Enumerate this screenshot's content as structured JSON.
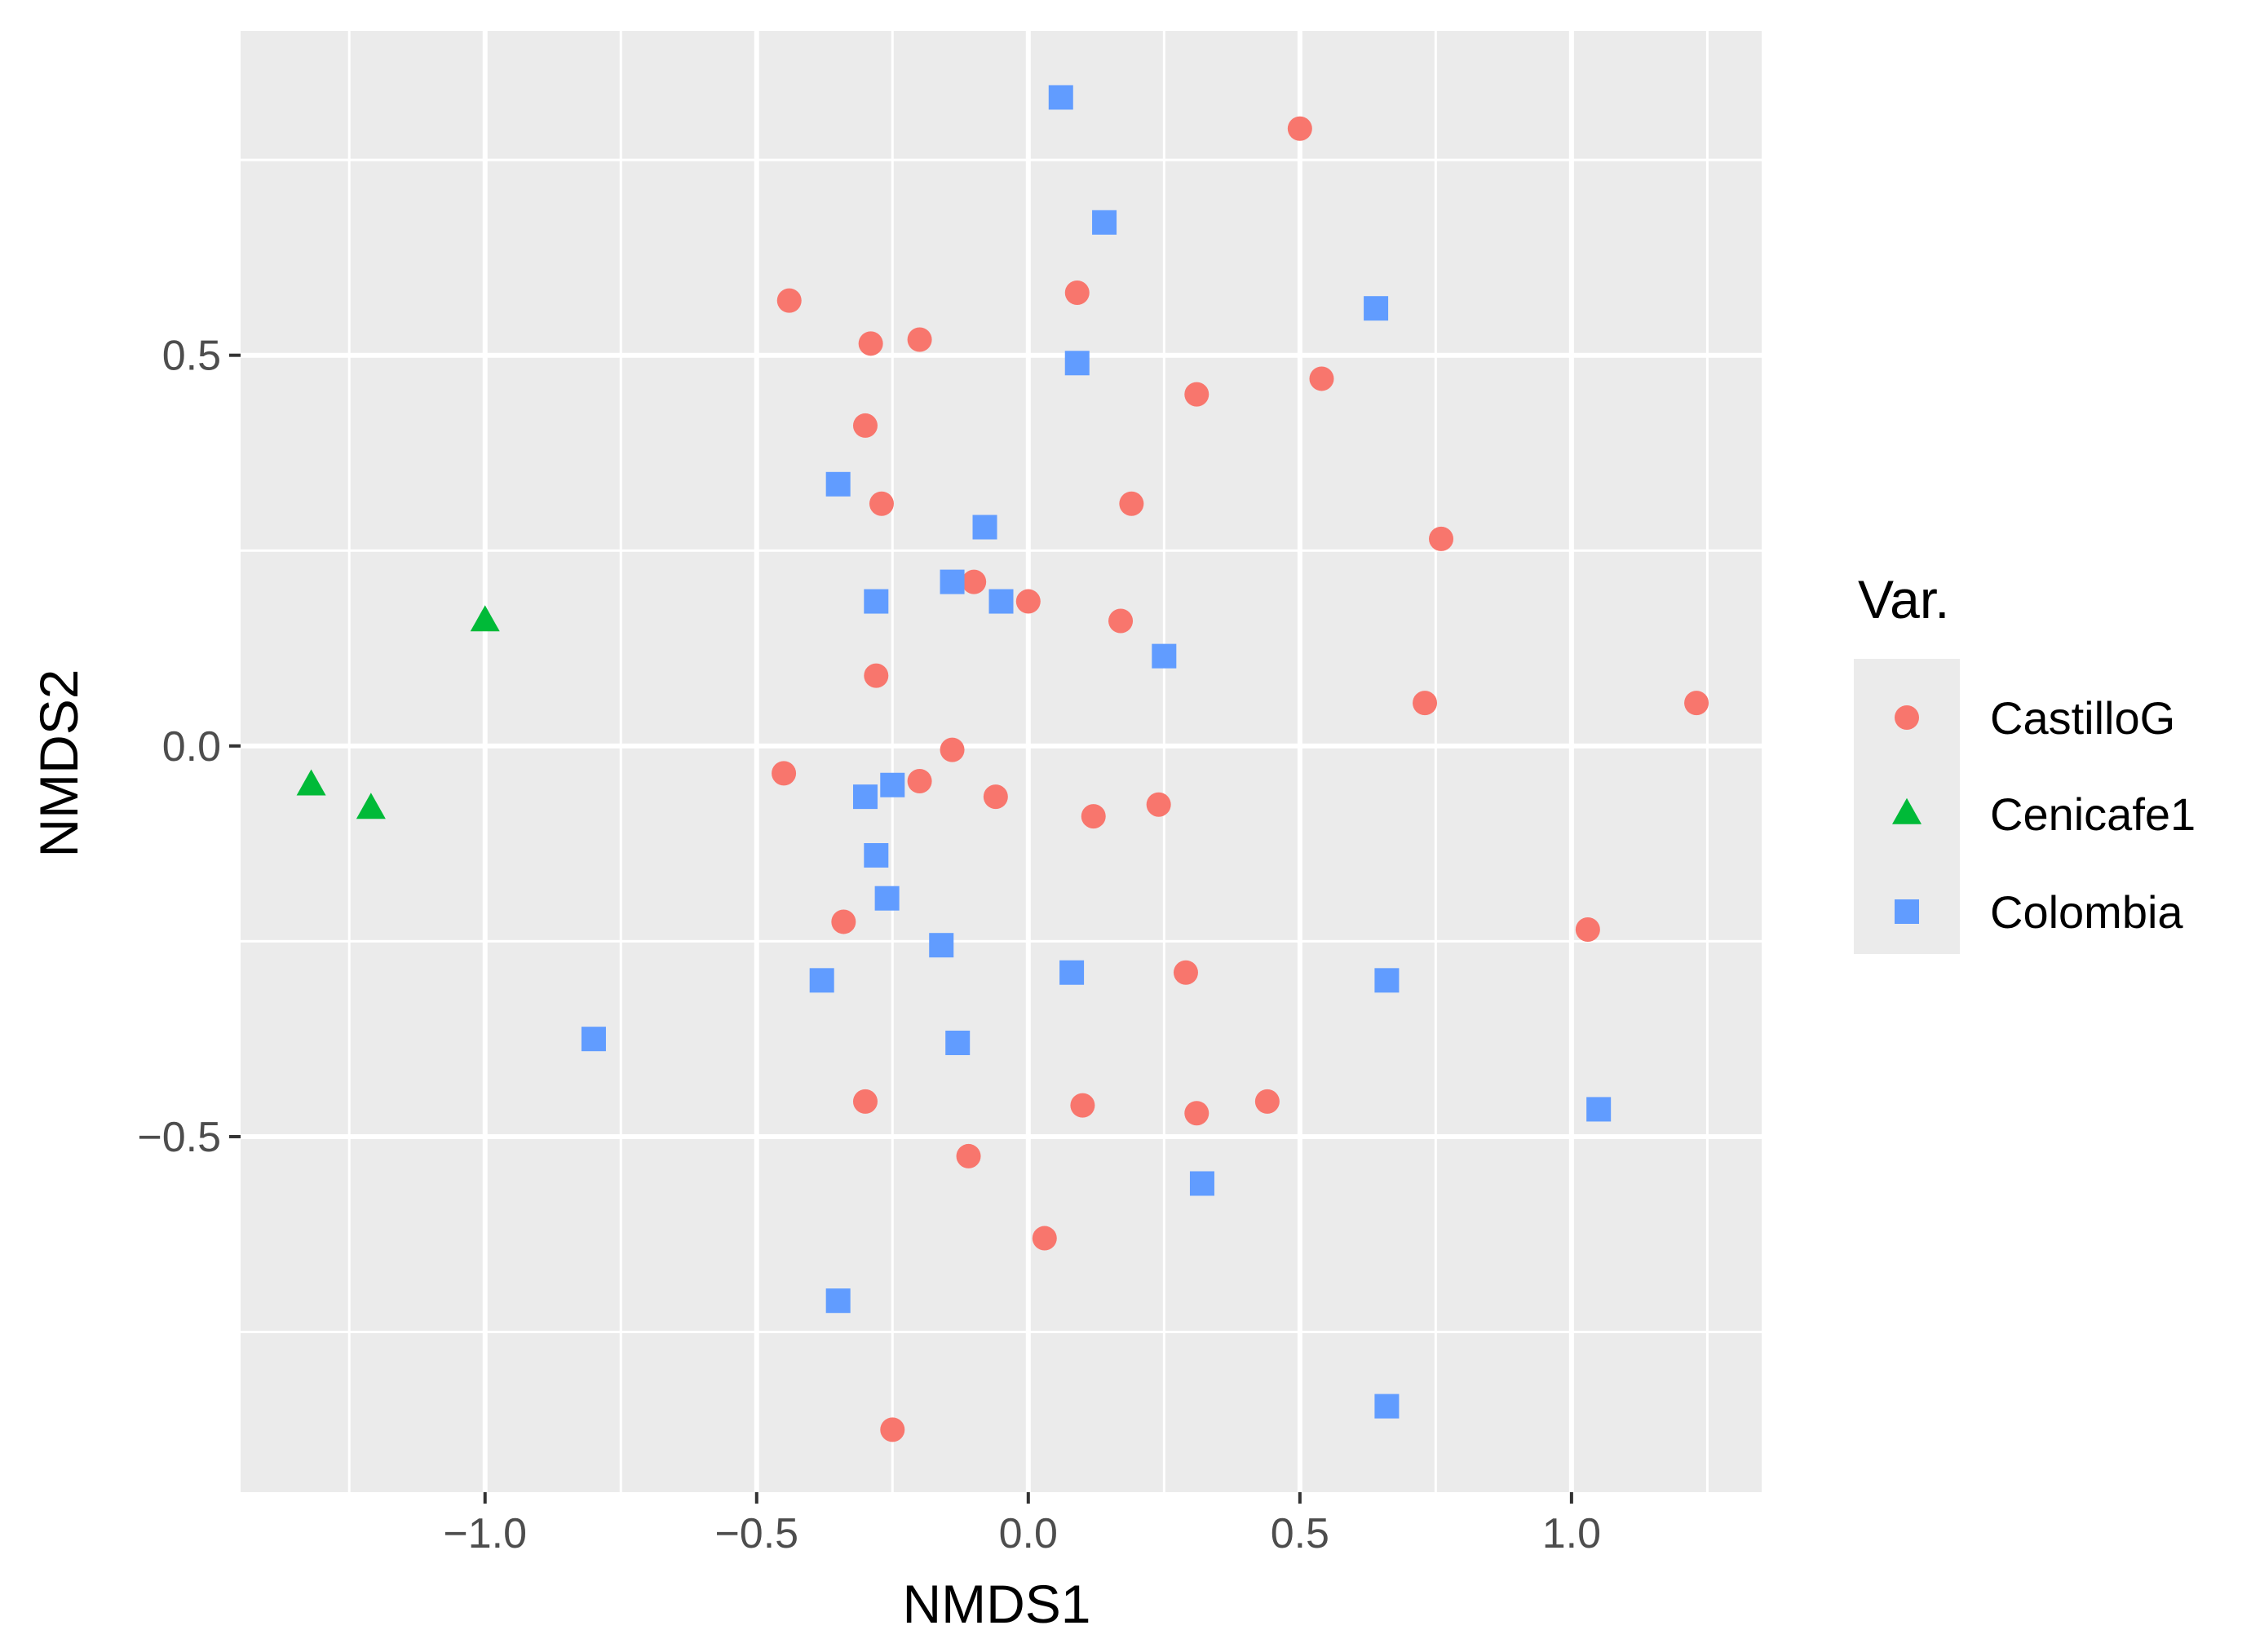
{
  "chart_data": {
    "type": "scatter",
    "xlabel": "NMDS1",
    "ylabel": "NMDS2",
    "xlim": [
      -1.45,
      1.35
    ],
    "ylim": [
      -0.955,
      0.915
    ],
    "x_ticks": [
      -1.0,
      -0.5,
      0.0,
      0.5,
      1.0
    ],
    "x_tick_labels": [
      "−1.0",
      "−0.5",
      "0.0",
      "0.5",
      "1.0"
    ],
    "y_ticks": [
      -0.5,
      0.0,
      0.5
    ],
    "y_tick_labels": [
      "−0.5",
      "0.0",
      "0.5"
    ],
    "grid": true,
    "background": "#ebebeb",
    "legend": {
      "title": "Var.",
      "position": "right"
    },
    "series": [
      {
        "name": "CastilloG",
        "shape": "circle",
        "color": "#f8766d",
        "points": [
          [
            0.5,
            0.79
          ],
          [
            -0.44,
            0.57
          ],
          [
            0.09,
            0.58
          ],
          [
            -0.29,
            0.515
          ],
          [
            -0.2,
            0.52
          ],
          [
            0.31,
            0.45
          ],
          [
            0.54,
            0.47
          ],
          [
            -0.3,
            0.41
          ],
          [
            -0.27,
            0.31
          ],
          [
            0.19,
            0.31
          ],
          [
            0.76,
            0.265
          ],
          [
            -0.1,
            0.21
          ],
          [
            0.0,
            0.185
          ],
          [
            0.17,
            0.16
          ],
          [
            -0.28,
            0.09
          ],
          [
            0.73,
            0.055
          ],
          [
            1.23,
            0.055
          ],
          [
            -0.14,
            -0.005
          ],
          [
            -0.45,
            -0.035
          ],
          [
            -0.2,
            -0.045
          ],
          [
            -0.06,
            -0.065
          ],
          [
            0.12,
            -0.09
          ],
          [
            0.24,
            -0.075
          ],
          [
            -0.34,
            -0.225
          ],
          [
            1.03,
            -0.235
          ],
          [
            0.29,
            -0.29
          ],
          [
            -0.3,
            -0.455
          ],
          [
            0.1,
            -0.46
          ],
          [
            0.31,
            -0.47
          ],
          [
            0.44,
            -0.455
          ],
          [
            -0.11,
            -0.525
          ],
          [
            0.03,
            -0.63
          ],
          [
            -0.25,
            -0.875
          ]
        ]
      },
      {
        "name": "Cenicafe1",
        "shape": "triangle",
        "color": "#00ba38",
        "points": [
          [
            -1.0,
            0.16
          ],
          [
            -1.32,
            -0.05
          ],
          [
            -1.21,
            -0.08
          ]
        ]
      },
      {
        "name": "Colombia",
        "shape": "square",
        "color": "#619cff",
        "points": [
          [
            0.06,
            0.83
          ],
          [
            0.14,
            0.67
          ],
          [
            0.64,
            0.56
          ],
          [
            0.09,
            0.49
          ],
          [
            -0.35,
            0.335
          ],
          [
            -0.08,
            0.28
          ],
          [
            -0.28,
            0.185
          ],
          [
            -0.14,
            0.21
          ],
          [
            -0.05,
            0.185
          ],
          [
            0.25,
            0.115
          ],
          [
            -0.3,
            -0.065
          ],
          [
            -0.25,
            -0.05
          ],
          [
            -0.28,
            -0.14
          ],
          [
            -0.26,
            -0.195
          ],
          [
            -0.16,
            -0.255
          ],
          [
            -0.38,
            -0.3
          ],
          [
            0.08,
            -0.29
          ],
          [
            0.66,
            -0.3
          ],
          [
            -0.8,
            -0.375
          ],
          [
            -0.13,
            -0.38
          ],
          [
            1.05,
            -0.465
          ],
          [
            0.32,
            -0.56
          ],
          [
            -0.35,
            -0.71
          ],
          [
            0.66,
            -0.845
          ]
        ]
      }
    ]
  }
}
